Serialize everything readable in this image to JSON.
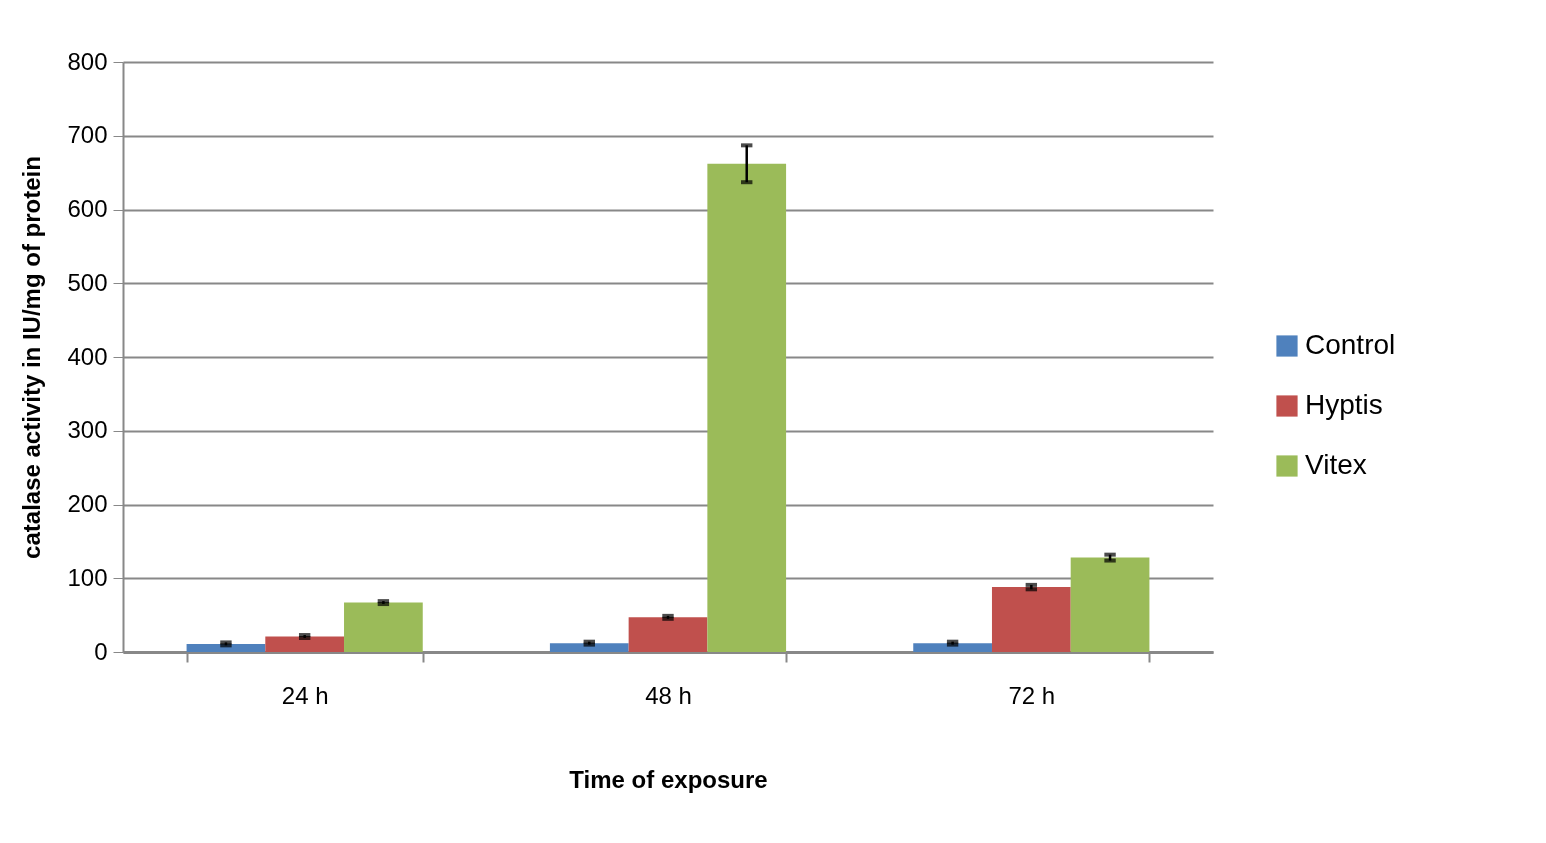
{
  "chart_data": {
    "type": "bar",
    "xlabel": "Time of exposure",
    "ylabel": "catalase activity in IU/mg of protein",
    "categories": [
      "24 h",
      "48 h",
      "72 h"
    ],
    "series": [
      {
        "name": "Control",
        "color": "#4f81bd",
        "values": [
          11,
          12,
          12
        ],
        "errors": [
          2,
          2,
          2
        ]
      },
      {
        "name": "Hyptis",
        "color": "#c0504d",
        "values": [
          21,
          47,
          88
        ],
        "errors": [
          2,
          2,
          3
        ]
      },
      {
        "name": "Vitex",
        "color": "#9bbb59",
        "values": [
          67,
          662,
          128
        ],
        "errors": [
          2,
          25,
          4
        ]
      }
    ],
    "ylim": [
      0,
      800
    ],
    "yticks": [
      0,
      100,
      200,
      300,
      400,
      500,
      600,
      700,
      800
    ],
    "grid": "y",
    "legend": "right"
  }
}
